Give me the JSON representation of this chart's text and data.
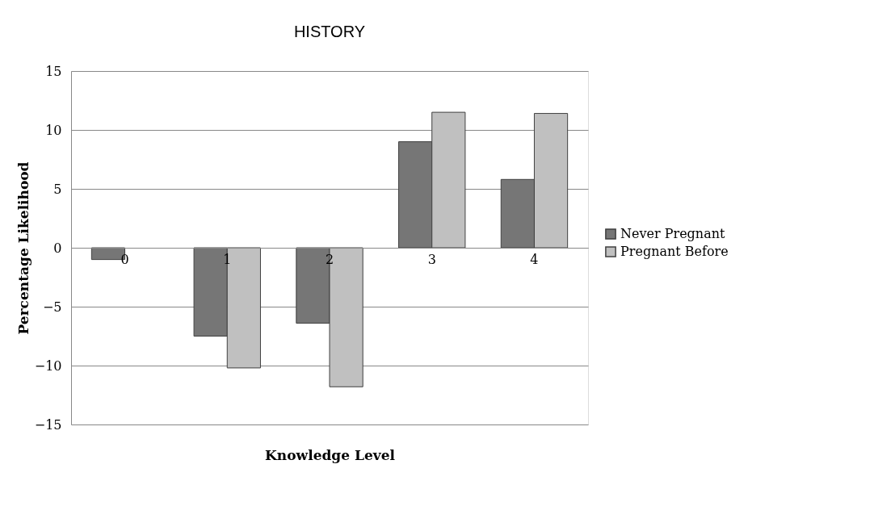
{
  "chart_data": {
    "type": "bar",
    "title": "HISTORY",
    "xlabel": "Knowledge Level",
    "ylabel": "Percentage Likelihood",
    "categories": [
      "0",
      "1",
      "2",
      "3",
      "4"
    ],
    "series": [
      {
        "name": "Never Pregnant",
        "color": "#767676",
        "values": [
          -1,
          -7.5,
          -6.4,
          9,
          5.8
        ]
      },
      {
        "name": "Pregnant Before",
        "color": "#c0c0c0",
        "values": [
          null,
          -10.2,
          -11.8,
          11.5,
          11.4
        ]
      }
    ],
    "ylim": [
      -15,
      15
    ],
    "yticks": [
      -15,
      -10,
      -5,
      0,
      5,
      10,
      15
    ],
    "grid": "y",
    "legend": "right"
  }
}
